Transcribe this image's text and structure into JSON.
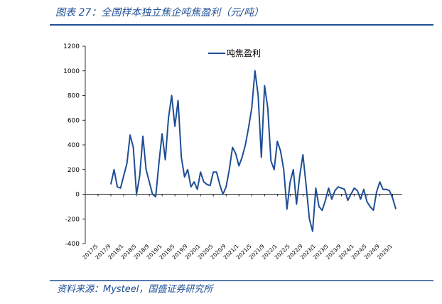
{
  "header": {
    "title": "图表 27：全国样本独立焦企吨焦盈利（元/吨）"
  },
  "footer": {
    "source": "资料来源：Mysteel，国盛证券研究所"
  },
  "chart_data": {
    "type": "line",
    "x": [
      "2017/9",
      "2017/10",
      "2017/11",
      "2017/12",
      "2018/1",
      "2018/2",
      "2018/3",
      "2018/4",
      "2018/5",
      "2018/6",
      "2018/7",
      "2018/8",
      "2018/9",
      "2018/10",
      "2018/11",
      "2018/12",
      "2019/1",
      "2019/2",
      "2019/3",
      "2019/4",
      "2019/5",
      "2019/6",
      "2019/7",
      "2019/8",
      "2019/9",
      "2019/10",
      "2019/11",
      "2019/12",
      "2020/1",
      "2020/2",
      "2020/3",
      "2020/4",
      "2020/5",
      "2020/6",
      "2020/7",
      "2020/8",
      "2020/9",
      "2020/10",
      "2020/11",
      "2020/12",
      "2021/1",
      "2021/2",
      "2021/3",
      "2021/4",
      "2021/5",
      "2021/6",
      "2021/7",
      "2021/8",
      "2021/9",
      "2021/10",
      "2021/11",
      "2021/12",
      "2022/1",
      "2022/2",
      "2022/3",
      "2022/4",
      "2022/5",
      "2022/6",
      "2022/7",
      "2022/8",
      "2022/9",
      "2022/10",
      "2022/11",
      "2022/12",
      "2023/1",
      "2023/2",
      "2023/3",
      "2023/4",
      "2023/5",
      "2023/6",
      "2023/7",
      "2023/8",
      "2023/9",
      "2023/10",
      "2023/11",
      "2023/12",
      "2024/1",
      "2024/2",
      "2024/3",
      "2024/4",
      "2024/5",
      "2024/6",
      "2024/7",
      "2024/8",
      "2024/9",
      "2024/10",
      "2024/11",
      "2024/12",
      "2025/1",
      "2025/2"
    ],
    "series": [
      {
        "name": "吨焦盈利",
        "color": "#1f4e96",
        "values": [
          80,
          200,
          60,
          50,
          150,
          250,
          480,
          380,
          0,
          150,
          470,
          200,
          100,
          0,
          -20,
          250,
          490,
          280,
          620,
          800,
          550,
          760,
          300,
          140,
          200,
          60,
          100,
          40,
          180,
          100,
          80,
          70,
          180,
          180,
          80,
          0,
          60,
          200,
          380,
          330,
          230,
          300,
          400,
          540,
          700,
          1000,
          800,
          300,
          880,
          700,
          270,
          200,
          430,
          350,
          200,
          -120,
          100,
          200,
          -80,
          150,
          320,
          70,
          -200,
          -300,
          50,
          -100,
          -130,
          -50,
          50,
          -40,
          30,
          60,
          50,
          40,
          -50,
          0,
          50,
          30,
          -40,
          40,
          -60,
          -100,
          -130,
          20,
          100,
          40,
          40,
          30,
          -30,
          -120
        ]
      }
    ],
    "xlim": [
      "2017/1",
      "2025/4"
    ],
    "xticks": [
      "2017/5",
      "2017/9",
      "2018/1",
      "2018/5",
      "2018/9",
      "2019/1",
      "2019/5",
      "2019/9",
      "2020/1",
      "2020/5",
      "2020/9",
      "2021/1",
      "2021/5",
      "2021/9",
      "2022/1",
      "2022/5",
      "2022/9",
      "2023/1",
      "2023/5",
      "2023/9",
      "2024/1",
      "2024/5",
      "2024/9",
      "2025/1"
    ],
    "ylim": [
      -400,
      1200
    ],
    "yticks": [
      -400,
      -200,
      0,
      200,
      400,
      600,
      800,
      1000,
      1200
    ],
    "legend": "top"
  }
}
